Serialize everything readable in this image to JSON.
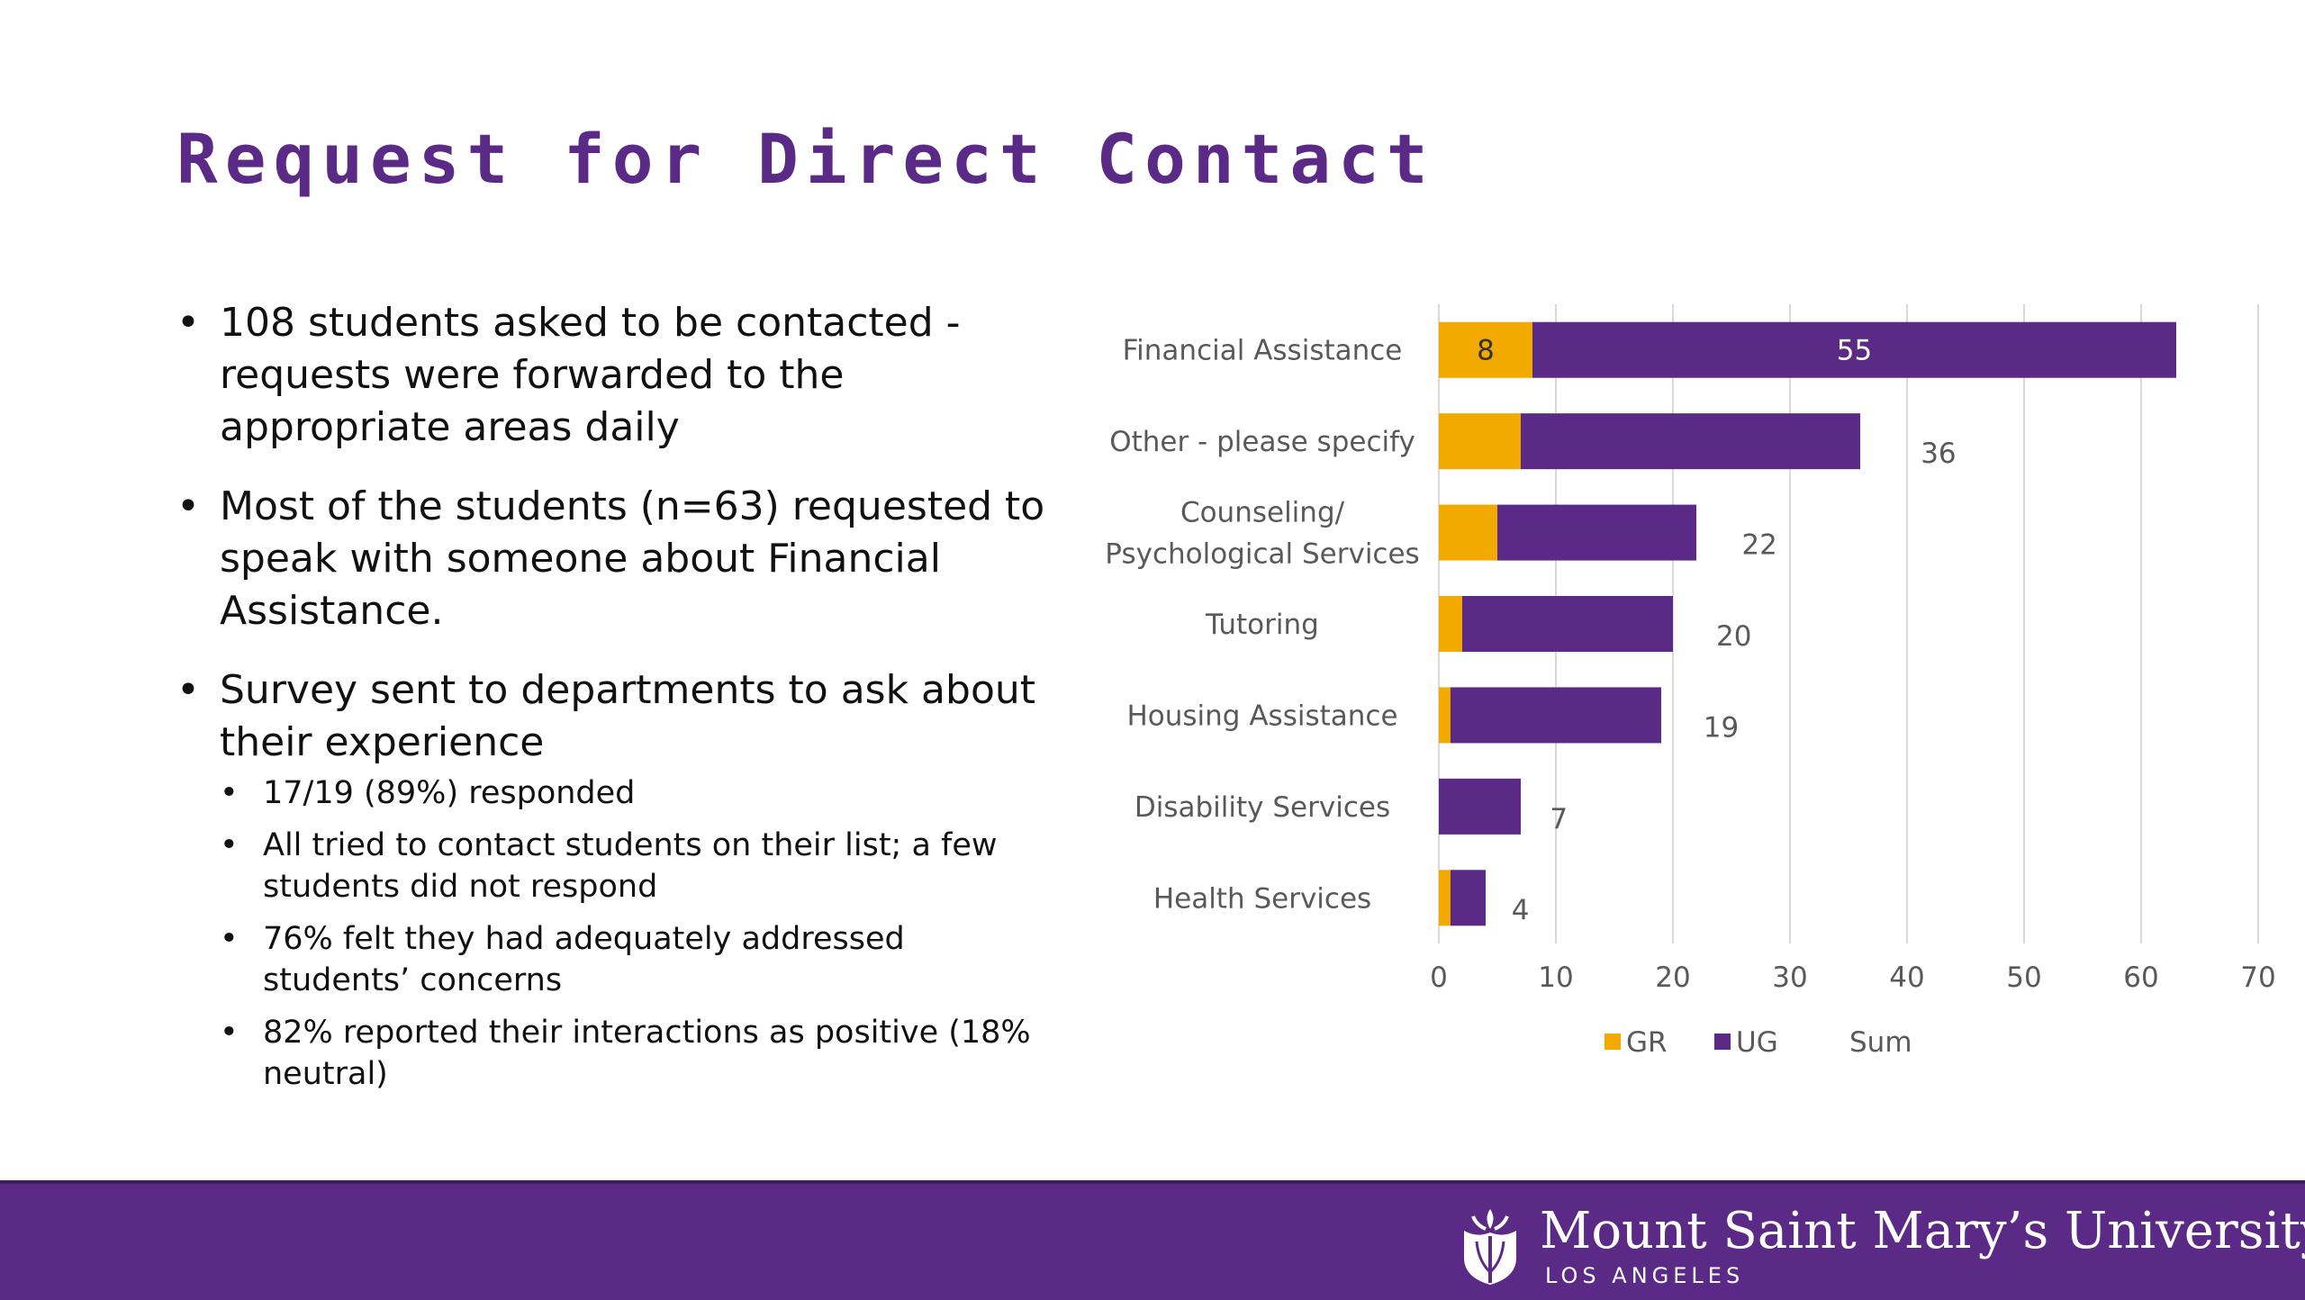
{
  "slide": {
    "title": "Request for Direct Contact"
  },
  "bullets": [
    {
      "text": "108 students asked to be contacted - requests were forwarded to the appropriate areas daily"
    },
    {
      "text": "Most of the students (n=63) requested to speak with someone about Financial Assistance."
    },
    {
      "text": "Survey sent to departments to ask about their experience"
    }
  ],
  "sub_bullets": [
    {
      "text": "17/19 (89%) responded"
    },
    {
      "text": "All tried to contact students on their list; a few students did not respond"
    },
    {
      "text": "76% felt they had adequately addressed students’ concerns"
    },
    {
      "text": "82% reported their interactions as positive (18% neutral)"
    }
  ],
  "chart_data": {
    "type": "bar",
    "orientation": "horizontal",
    "stacked": true,
    "categories": [
      "Financial Assistance",
      "Other - please specify",
      "Counseling/ Psychological Services",
      "Tutoring",
      "Housing Assistance",
      "Disability Services",
      "Health Services"
    ],
    "series": [
      {
        "name": "GR",
        "color": "#f2a900",
        "values": [
          8,
          7,
          5,
          2,
          1,
          0,
          1
        ],
        "data_labels": [
          "8",
          "",
          "",
          "",
          "",
          "",
          ""
        ]
      },
      {
        "name": "UG",
        "color": "#5b2a86",
        "values": [
          55,
          29,
          17,
          18,
          18,
          7,
          3
        ],
        "data_labels": [
          "55",
          "",
          "",
          "",
          "",
          "",
          ""
        ]
      },
      {
        "name": "Sum",
        "color": "#ffffff",
        "values": [
          63,
          36,
          22,
          20,
          19,
          7,
          4
        ],
        "data_labels": [
          "",
          "36",
          "22",
          "20",
          "19",
          "7",
          "4"
        ]
      }
    ],
    "xlim": [
      0,
      70
    ],
    "x_ticks": [
      0,
      10,
      20,
      30,
      40,
      50,
      60,
      70
    ],
    "grid": "vertical",
    "legend": "bottom"
  },
  "footer": {
    "logo_icon": "lily-crest-icon",
    "university_name": "Mount Saint Mary’s University",
    "location": "LOS ANGELES",
    "background_color": "#5b2a86"
  }
}
